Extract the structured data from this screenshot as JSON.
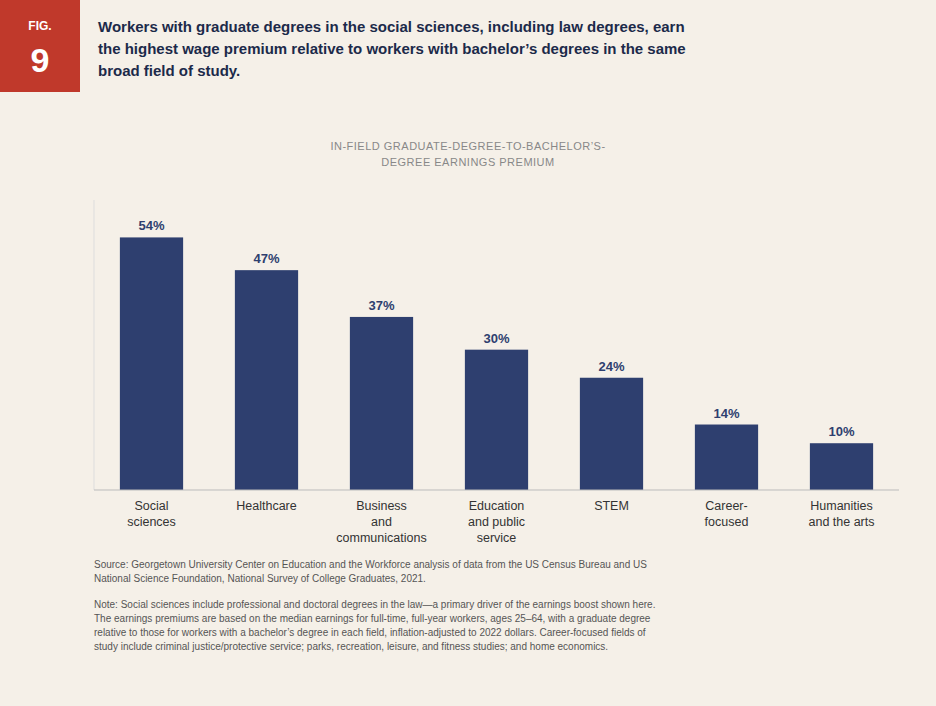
{
  "chart_data": {
    "type": "bar",
    "figure_label": "FIG.\n9",
    "title": "Workers with graduate degrees in the social sciences, including law degrees, earn\nthe highest wage premium relative to workers with bachelor’s degrees in the same\nbroad field of study.",
    "subtitle": "IN-FIELD GRADUATE-DEGREE-TO-BACHELOR’S-\nDEGREE EARNINGS PREMIUM",
    "categories": [
      "Social\nsciences",
      "Healthcare",
      "Business\nand\ncommunications",
      "Education\nand public\nservice",
      "STEM",
      "Career-\nfocused",
      "Humanities\nand the arts"
    ],
    "values": [
      54,
      47,
      37,
      30,
      24,
      14,
      10
    ],
    "value_labels": [
      "54%",
      "47%",
      "37%",
      "30%",
      "24%",
      "14%",
      "10%"
    ],
    "color": "#2E3F6F",
    "ylim": [
      0,
      62
    ],
    "grid": false,
    "data_labels": true,
    "tick_labels": "x",
    "source": "Source: Georgetown University Center on Education and the Workforce analysis of data from the US Census Bureau and US\nNational Science Foundation, National Survey of College Graduates, 2021.",
    "note": "Note: Social sciences include professional and doctoral degrees in the law—a primary driver of the earnings boost shown here.\nThe earnings premiums are based on the median earnings for full-time, full-year workers, ages 25–64, with a graduate degree\nrelative to those for workers with a bachelor’s degree in each field, inflation-adjusted to 2022 dollars. Career-focused fields of\nstudy include criminal justice/protective service; parks, recreation, leisure, and fitness studies; and home economics."
  }
}
